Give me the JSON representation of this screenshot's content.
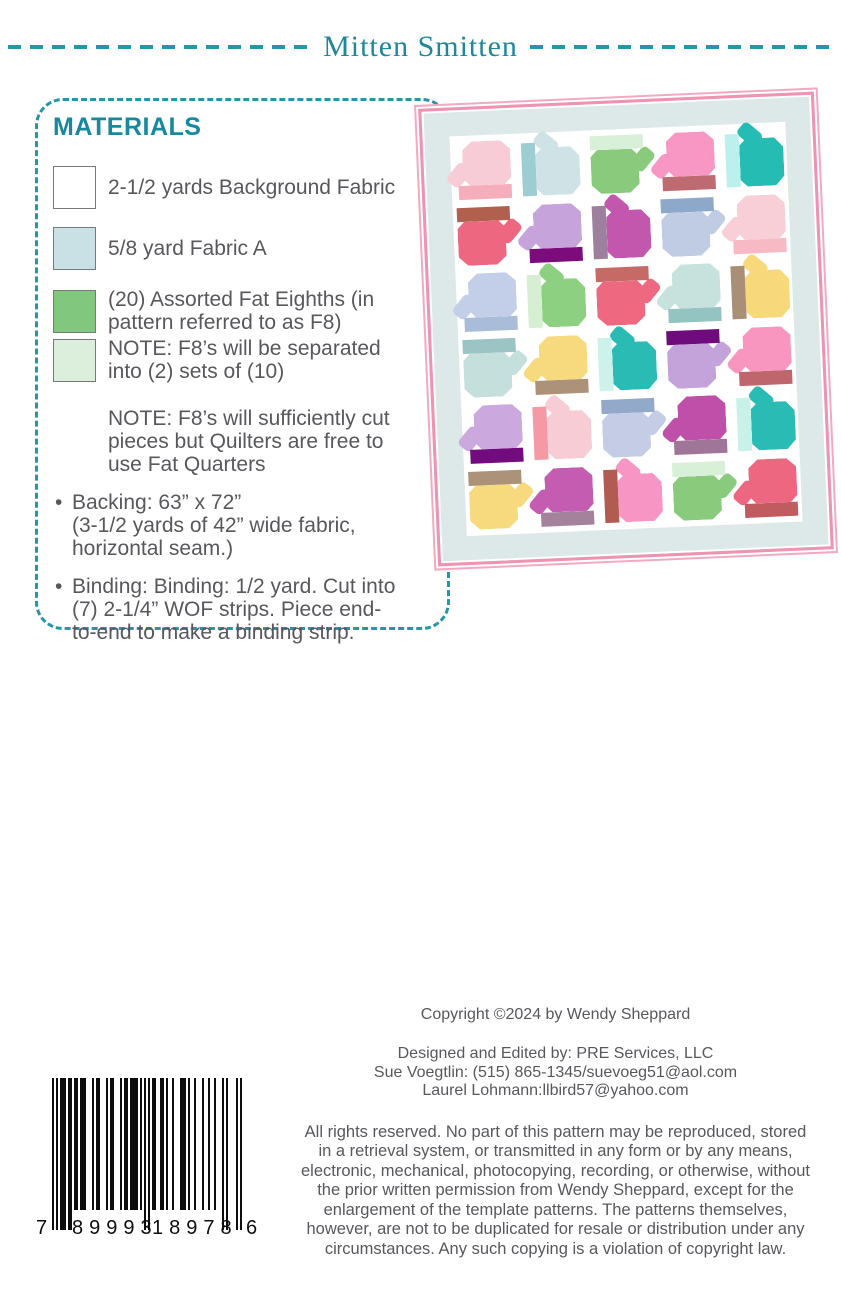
{
  "header": {
    "title": "Mitten Smitten"
  },
  "accent_color": "#2596a8",
  "text_color": "#57585c",
  "materials": {
    "heading": "MATERIALS",
    "items": [
      {
        "swatch_color": "#ffffff",
        "label": "2-1/2 yards Background Fabric"
      },
      {
        "swatch_color": "#c9e1e4",
        "label": "5/8 yard Fabric A"
      },
      {
        "swatch_color": "#82c77e",
        "label": "(20) Assorted Fat Eighths (in\npattern referred to as F8)"
      },
      {
        "swatch_color": "#dcefdc",
        "label": "NOTE: F8’s will be separated\ninto (2) sets of (10)"
      }
    ],
    "note": "NOTE: F8’s will sufficiently cut\npieces but Quilters are free to\nuse Fat Quarters",
    "bullets": [
      "Backing: 63” x 72”\n(3-1/2 yards of 42” wide fabric,\nhorizontal seam.)",
      "Binding: Binding: 1/2 yard. Cut into\n(7) 2-1/4” WOF strips. Piece end-\nto-end to make a binding strip."
    ]
  },
  "quilt": {
    "border_color": "#ef93b1",
    "sash_color": "#dde9e8",
    "background_color": "#ffffff",
    "mittens": [
      {
        "o": "up",
        "body": "#f8ccd6",
        "cuff": "#f6aebc"
      },
      {
        "o": "left",
        "body": "#cfe3e6",
        "cuff": "#9ccdd3"
      },
      {
        "o": "down",
        "body": "#8aca7c",
        "cuff": "#d8efd8"
      },
      {
        "o": "up",
        "body": "#f897c4",
        "cuff": "#bd6b70"
      },
      {
        "o": "left",
        "body": "#25bcb4",
        "cuff": "#bbf0ef"
      },
      {
        "o": "down",
        "body": "#ee6780",
        "cuff": "#b2604e"
      },
      {
        "o": "up",
        "body": "#c6a3da",
        "cuff": "#7c0c7c"
      },
      {
        "o": "left",
        "body": "#c357ae",
        "cuff": "#9d7f9e"
      },
      {
        "o": "down",
        "body": "#c0cce3",
        "cuff": "#8da8c8"
      },
      {
        "o": "up",
        "body": "#f8ced7",
        "cuff": "#f7b9c4"
      },
      {
        "o": "up",
        "body": "#c3cfe8",
        "cuff": "#a9bdd9"
      },
      {
        "o": "left",
        "body": "#8ed081",
        "cuff": "#d6efd3"
      },
      {
        "o": "down",
        "body": "#ee687f",
        "cuff": "#c76a66"
      },
      {
        "o": "up",
        "body": "#c7e1dd",
        "cuff": "#93c4c2"
      },
      {
        "o": "left",
        "body": "#f7d87b",
        "cuff": "#a98f75"
      },
      {
        "o": "down",
        "body": "#c4dfdc",
        "cuff": "#9dc4c5"
      },
      {
        "o": "up",
        "body": "#f8da7e",
        "cuff": "#ab9278"
      },
      {
        "o": "left",
        "body": "#2abcb4",
        "cuff": "#cdf2ec"
      },
      {
        "o": "down",
        "body": "#c4a2da",
        "cuff": "#700b7d"
      },
      {
        "o": "up",
        "body": "#f896bf",
        "cuff": "#bf666c"
      },
      {
        "o": "up",
        "body": "#cba8de",
        "cuff": "#720b7e"
      },
      {
        "o": "left",
        "body": "#f8ccd4",
        "cuff": "#f59aa4"
      },
      {
        "o": "down",
        "body": "#c4cde5",
        "cuff": "#92a9c9"
      },
      {
        "o": "up",
        "body": "#c04fa9",
        "cuff": "#9f7697"
      },
      {
        "o": "left",
        "body": "#2abcb4",
        "cuff": "#c8f1e8"
      },
      {
        "o": "down",
        "body": "#f8da7e",
        "cuff": "#ab9278"
      },
      {
        "o": "up",
        "body": "#c45cb1",
        "cuff": "#a5829c"
      },
      {
        "o": "left",
        "body": "#f795c5",
        "cuff": "#b25b51"
      },
      {
        "o": "down",
        "body": "#8aca7c",
        "cuff": "#d8efd8"
      },
      {
        "o": "up",
        "body": "#ee6780",
        "cuff": "#c05b60"
      }
    ]
  },
  "footer": {
    "copyright": "Copyright ©2024 by Wendy Sheppard",
    "credits": "Designed and Edited by: PRE Services, LLC\nSue Voegtlin: (515) 865-1345/suevoeg51@aol.com\nLaurel Lohmann:llbird57@yahoo.com",
    "legal": "All rights reserved. No part of this pattern may be reproduced, stored\nin a retrieval system, or transmitted in any form or by any means,\nelectronic, mechanical, photocopying, recording, or otherwise, without\nthe prior written permission from Wendy Sheppard, except for the\nenlargement of the template patterns. The patterns themselves,\nhowever, are not to be duplicated for resale or distribution under any\ncircumstances. Any such copying is a violation of copyright law."
  },
  "barcode": {
    "digits": "789993189786",
    "display": {
      "lead": "7",
      "group1": "89993",
      "group2": "18978",
      "trail": "6"
    }
  }
}
